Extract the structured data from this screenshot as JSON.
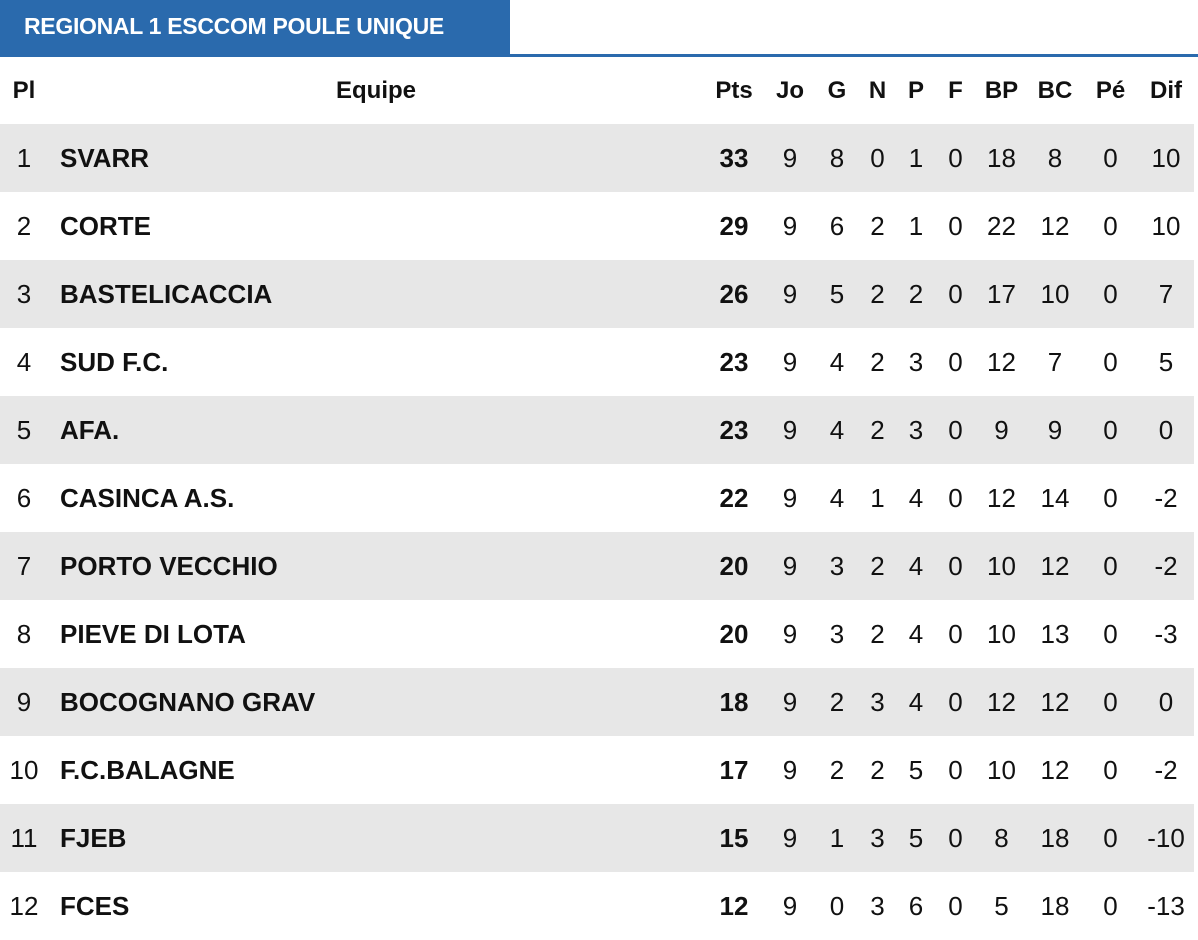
{
  "title": "REGIONAL 1 ESCCOM POULE UNIQUE",
  "accent": "#2a6aad",
  "columns": [
    "Pl",
    "Equipe",
    "Pts",
    "Jo",
    "G",
    "N",
    "P",
    "F",
    "BP",
    "BC",
    "Pé",
    "Dif"
  ],
  "rows": [
    [
      "1",
      "SVARR",
      "33",
      "9",
      "8",
      "0",
      "1",
      "0",
      "18",
      "8",
      "0",
      "10"
    ],
    [
      "2",
      "CORTE",
      "29",
      "9",
      "6",
      "2",
      "1",
      "0",
      "22",
      "12",
      "0",
      "10"
    ],
    [
      "3",
      "BASTELICACCIA",
      "26",
      "9",
      "5",
      "2",
      "2",
      "0",
      "17",
      "10",
      "0",
      "7"
    ],
    [
      "4",
      "SUD F.C.",
      "23",
      "9",
      "4",
      "2",
      "3",
      "0",
      "12",
      "7",
      "0",
      "5"
    ],
    [
      "5",
      "AFA.",
      "23",
      "9",
      "4",
      "2",
      "3",
      "0",
      "9",
      "9",
      "0",
      "0"
    ],
    [
      "6",
      "CASINCA A.S.",
      "22",
      "9",
      "4",
      "1",
      "4",
      "0",
      "12",
      "14",
      "0",
      "-2"
    ],
    [
      "7",
      "PORTO VECCHIO",
      "20",
      "9",
      "3",
      "2",
      "4",
      "0",
      "10",
      "12",
      "0",
      "-2"
    ],
    [
      "8",
      "PIEVE DI LOTA",
      "20",
      "9",
      "3",
      "2",
      "4",
      "0",
      "10",
      "13",
      "0",
      "-3"
    ],
    [
      "9",
      "BOCOGNANO GRAV",
      "18",
      "9",
      "2",
      "3",
      "4",
      "0",
      "12",
      "12",
      "0",
      "0"
    ],
    [
      "10",
      "F.C.BALAGNE",
      "17",
      "9",
      "2",
      "2",
      "5",
      "0",
      "10",
      "12",
      "0",
      "-2"
    ],
    [
      "11",
      "FJEB",
      "15",
      "9",
      "1",
      "3",
      "5",
      "0",
      "8",
      "18",
      "0",
      "-10"
    ],
    [
      "12",
      "FCES",
      "12",
      "9",
      "0",
      "3",
      "6",
      "0",
      "5",
      "18",
      "0",
      "-13"
    ]
  ]
}
